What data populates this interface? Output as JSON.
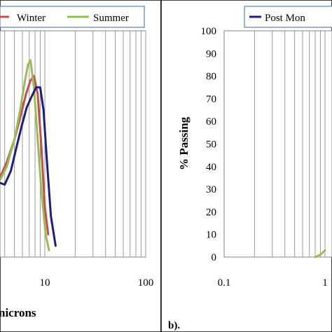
{
  "chart_data": [
    {
      "type": "line",
      "panel": "a",
      "xscale": "log",
      "xlim": [
        1,
        100
      ],
      "x_tick_labels": [
        "10",
        "100"
      ],
      "xlabel_visible_fragment": "nicrons",
      "legend": {
        "entries": [
          "Winter",
          "Summer"
        ],
        "placement": "top"
      },
      "series": [
        {
          "name": "Winter",
          "color": "#c0504d",
          "x": [
            1.0,
            1.3,
            1.7,
            2.2,
            2.8,
            3.5,
            4.2,
            5.0,
            5.8,
            6.5,
            7.2,
            7.8,
            8.5,
            9.2,
            10.0,
            10.8
          ],
          "y": [
            30,
            28,
            27,
            28,
            30,
            34,
            42,
            52,
            63,
            72,
            78,
            80,
            72,
            50,
            22,
            10
          ]
        },
        {
          "name": "Summer",
          "color": "#9bbb59",
          "x": [
            1.0,
            1.3,
            1.7,
            2.2,
            2.8,
            3.5,
            4.2,
            5.0,
            5.7,
            6.3,
            6.8,
            7.2,
            7.8,
            8.5,
            9.3,
            10.2,
            11.0
          ],
          "y": [
            28,
            26,
            26,
            27,
            29,
            33,
            40,
            52,
            65,
            77,
            85,
            87,
            75,
            52,
            28,
            10,
            3
          ]
        },
        {
          "name": "",
          "color": "#1f1f7a",
          "x": [
            1.0,
            1.3,
            1.6,
            2.0,
            2.5,
            3.0,
            3.5,
            4.0,
            4.6,
            5.2,
            5.9,
            6.6,
            7.4,
            8.2,
            9.0,
            9.7,
            10.5,
            11.5,
            12.8
          ],
          "y": [
            32,
            33,
            31,
            27,
            29,
            33,
            33,
            32,
            38,
            48,
            58,
            66,
            71,
            75,
            75,
            65,
            42,
            18,
            5
          ]
        }
      ]
    },
    {
      "type": "line",
      "panel": "b",
      "xscale": "log",
      "xlim": [
        0.1,
        1.0
      ],
      "ylim": [
        0,
        100
      ],
      "x_tick_labels": [
        "0.1",
        "1"
      ],
      "y_ticks": [
        "0",
        "10",
        "20",
        "30",
        "40",
        "50",
        "60",
        "70",
        "80",
        "90",
        "100"
      ],
      "ylabel": "% Passing",
      "legend": {
        "entries": [
          "Post Mon"
        ],
        "placement": "top"
      },
      "panel_label": "b).",
      "series": [
        {
          "name": "Post Mon",
          "color": "#1f1f7a",
          "x": [],
          "y": []
        },
        {
          "name": "",
          "color": "#9bbb59",
          "x": [
            0.8,
            0.9,
            1.0
          ],
          "y": [
            0,
            1,
            3
          ]
        }
      ]
    }
  ]
}
